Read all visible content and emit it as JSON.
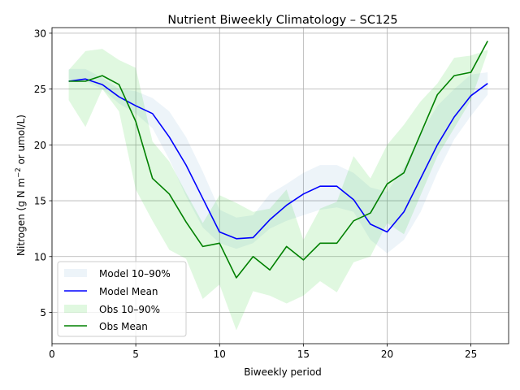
{
  "chart_data": {
    "type": "line",
    "title": "Nutrient Biweekly Climatology – SC125",
    "xlabel": "Biweekly period",
    "ylabel_main": "Nitrogen (g N m",
    "ylabel_sup": "−2",
    "ylabel_tail": " or umol/L)",
    "xlim": [
      0,
      27.25
    ],
    "ylim": [
      2.2,
      30.5
    ],
    "xticks": [
      0,
      5,
      10,
      15,
      20,
      25
    ],
    "yticks": [
      5,
      10,
      15,
      20,
      25,
      30
    ],
    "grid": true,
    "legend_position": "lower-left",
    "x": [
      1,
      2,
      3,
      4,
      5,
      6,
      7,
      8,
      9,
      10,
      11,
      12,
      13,
      14,
      15,
      16,
      17,
      18,
      19,
      20,
      21,
      22,
      23,
      24,
      25,
      26
    ],
    "series": [
      {
        "name": "Model Mean",
        "color": "#0000ff",
        "values": [
          25.7,
          25.9,
          25.4,
          24.3,
          23.5,
          22.8,
          20.7,
          18.2,
          15.2,
          12.2,
          11.6,
          11.7,
          13.3,
          14.6,
          15.6,
          16.3,
          16.3,
          15.1,
          12.9,
          12.2,
          14.0,
          17.0,
          20.0,
          22.5,
          24.4,
          25.5
        ]
      },
      {
        "name": "Obs Mean",
        "color": "#008000",
        "values": [
          25.7,
          25.7,
          26.2,
          25.4,
          22.1,
          17.0,
          15.6,
          13.1,
          10.9,
          11.2,
          8.1,
          10.0,
          8.8,
          10.9,
          9.7,
          11.2,
          11.2,
          13.2,
          13.9,
          16.5,
          17.5,
          21.0,
          24.5,
          26.2,
          26.5,
          29.3
        ]
      }
    ],
    "bands": [
      {
        "name": "Model 10–90%",
        "color": "#1f77b4",
        "opacity": 0.08,
        "low": [
          25.6,
          25.7,
          25.0,
          23.7,
          22.8,
          21.5,
          18.7,
          15.4,
          12.6,
          11.2,
          10.7,
          11.2,
          12.5,
          13.2,
          13.7,
          14.2,
          14.4,
          14.0,
          11.5,
          10.3,
          11.5,
          14.0,
          17.5,
          20.5,
          22.6,
          24.5
        ],
        "high": [
          26.8,
          26.8,
          26.0,
          25.0,
          24.8,
          24.2,
          23.0,
          20.7,
          17.6,
          14.2,
          13.5,
          13.7,
          15.6,
          16.5,
          17.5,
          18.2,
          18.2,
          17.5,
          16.2,
          15.8,
          18.0,
          21.0,
          23.5,
          25.0,
          26.3,
          26.5
        ]
      },
      {
        "name": "Obs 10–90%",
        "color": "#32cd32",
        "opacity": 0.15,
        "low": [
          24.0,
          21.6,
          25.0,
          23.0,
          16.0,
          13.2,
          10.6,
          9.8,
          6.2,
          7.5,
          3.4,
          6.9,
          6.5,
          5.8,
          6.5,
          7.8,
          6.8,
          9.5,
          10.0,
          13.0,
          12.0,
          15.5,
          19.0,
          21.5,
          24.0,
          28.3
        ],
        "high": [
          26.7,
          28.4,
          28.6,
          27.6,
          26.9,
          20.3,
          18.5,
          15.7,
          13.0,
          15.5,
          14.8,
          14.0,
          14.3,
          16.0,
          11.5,
          14.3,
          14.9,
          19.0,
          17.0,
          20.0,
          21.8,
          23.9,
          25.5,
          27.8,
          28.0,
          28.5
        ]
      }
    ],
    "legend_order": [
      "Model 10–90%",
      "Model Mean",
      "Obs 10–90%",
      "Obs Mean"
    ]
  }
}
